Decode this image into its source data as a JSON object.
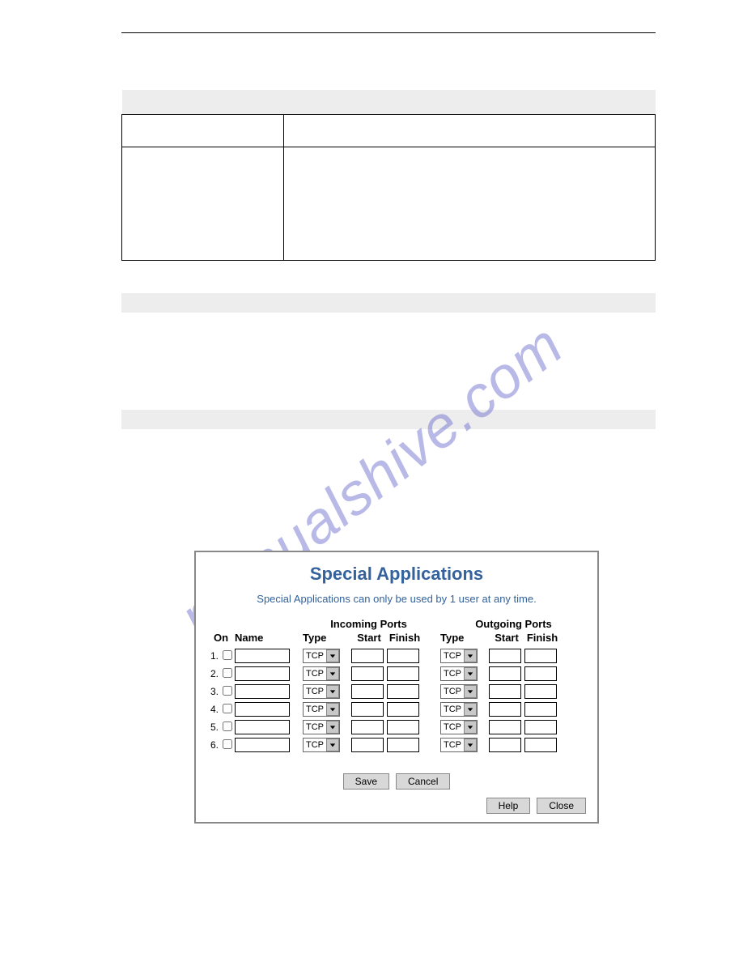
{
  "watermark": "manualshive.com",
  "dialog": {
    "title": "Special Applications",
    "subtitle": "Special Applications can only be used by 1 user at any time.",
    "group_incoming": "Incoming Ports",
    "group_outgoing": "Outgoing Ports",
    "col_on": "On",
    "col_name": "Name",
    "col_type": "Type",
    "col_start": "Start",
    "col_finish": "Finish",
    "default_type": "TCP",
    "rows": [
      "1.",
      "2.",
      "3.",
      "4.",
      "5.",
      "6."
    ],
    "btn_save": "Save",
    "btn_cancel": "Cancel",
    "btn_help": "Help",
    "btn_close": "Close"
  },
  "style": {
    "title_color": "#33629c",
    "grey_band": "#ededed",
    "dialog_border": "#888888",
    "button_bg": "#d8d8d8",
    "watermark_color": "rgba(115,115,210,0.5)"
  }
}
